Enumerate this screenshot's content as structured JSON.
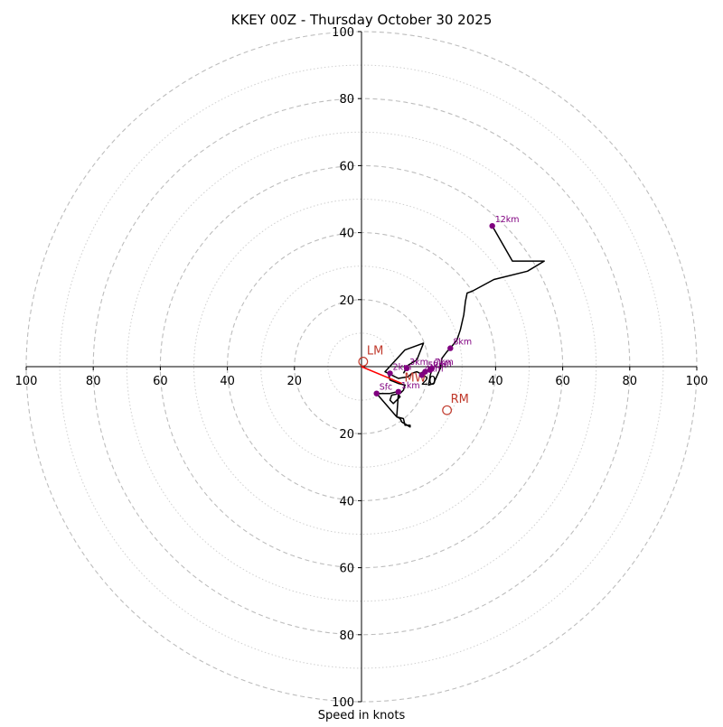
{
  "chart_data": {
    "type": "hodograph",
    "title": "KKEY 00Z - Thursday October 30 2025",
    "xlabel": "Speed in knots",
    "units": "knots",
    "rmax": 100,
    "ring_major": [
      20,
      40,
      60,
      80,
      100
    ],
    "ring_minor": [
      10,
      30,
      50,
      70,
      90
    ],
    "axis_ticks": [
      100,
      80,
      60,
      40,
      20
    ],
    "center_ticks": [
      "20"
    ],
    "trace": [
      [
        4.5,
        -8
      ],
      [
        8.5,
        -8
      ],
      [
        10.5,
        -7.5
      ],
      [
        11.5,
        -9
      ],
      [
        9.5,
        -11
      ],
      [
        8.5,
        -10
      ],
      [
        9.0,
        -8.5
      ],
      [
        11.5,
        -8.0
      ],
      [
        12.5,
        -7.0
      ],
      [
        13.0,
        -5.5
      ],
      [
        11.0,
        -5.0
      ],
      [
        8.5,
        -4.0
      ],
      [
        8.0,
        -2.0
      ],
      [
        7.0,
        -1.5
      ],
      [
        9.0,
        -2.5
      ],
      [
        11.0,
        -3.5
      ],
      [
        14.0,
        -3.0
      ],
      [
        15.0,
        -2.0
      ],
      [
        16.5,
        -1.5
      ],
      [
        17.5,
        -2.0
      ],
      [
        18.5,
        -1.5
      ],
      [
        19.5,
        -1.5
      ],
      [
        20.0,
        -0.5
      ],
      [
        21.0,
        -1.0
      ],
      [
        20.5,
        -2.5
      ],
      [
        20.0,
        -5.5
      ],
      [
        21.5,
        -5.0
      ],
      [
        23.5,
        -0.5
      ],
      [
        24.0,
        2.5
      ],
      [
        25.5,
        4.5
      ],
      [
        26.5,
        5.5
      ],
      [
        28.5,
        8.0
      ],
      [
        29.5,
        11.0
      ],
      [
        30.5,
        15.5
      ],
      [
        31.0,
        19.5
      ],
      [
        31.5,
        22.0
      ],
      [
        33.0,
        22.5
      ],
      [
        39.5,
        26.0
      ],
      [
        49.5,
        28.5
      ],
      [
        54.5,
        31.5
      ],
      [
        45.0,
        31.5
      ],
      [
        39.0,
        42.0
      ]
    ],
    "lower_trace": [
      [
        4.5,
        -8
      ],
      [
        10.5,
        -15.0
      ],
      [
        12.5,
        -15.5
      ],
      [
        13.0,
        -17.5
      ],
      [
        14.5,
        -17.5
      ],
      [
        14.5,
        -18.0
      ],
      [
        12.0,
        -16.5
      ],
      [
        11.5,
        -15.5
      ],
      [
        10.5,
        -15.0
      ],
      [
        11.0,
        -8.0
      ]
    ],
    "upper_left_trace": [
      [
        7.0,
        -1.5
      ],
      [
        13.0,
        5.0
      ],
      [
        18.5,
        7.0
      ],
      [
        16.5,
        2.0
      ],
      [
        14.0,
        0.5
      ],
      [
        12.5,
        -2.0
      ]
    ],
    "height_markers": [
      {
        "label": "Sfc",
        "u": 4.5,
        "v": -8.0
      },
      {
        "label": "1km",
        "u": 11.0,
        "v": -7.5
      },
      {
        "label": "2km",
        "u": 8.5,
        "v": -2.0
      },
      {
        "label": "3km",
        "u": 13.5,
        "v": -0.5
      },
      {
        "label": "4km",
        "u": 18.0,
        "v": -2.5
      },
      {
        "label": "5km",
        "u": 19.0,
        "v": -1.5
      },
      {
        "label": "6km",
        "u": 20.5,
        "v": -1.0
      },
      {
        "label": "7km",
        "u": 21.0,
        "v": -0.5
      },
      {
        "label": "8km",
        "u": 26.5,
        "v": 5.5
      },
      {
        "label": "12km",
        "u": 39.0,
        "v": 42.0
      }
    ],
    "storm_motion": [
      {
        "label": "LM",
        "u": 0.5,
        "v": 1.5
      },
      {
        "label": "RM",
        "u": 25.5,
        "v": -13.0
      }
    ],
    "mean_wind_label": "MW",
    "mean_wind": {
      "u": 12.0,
      "v": -5.0
    }
  }
}
